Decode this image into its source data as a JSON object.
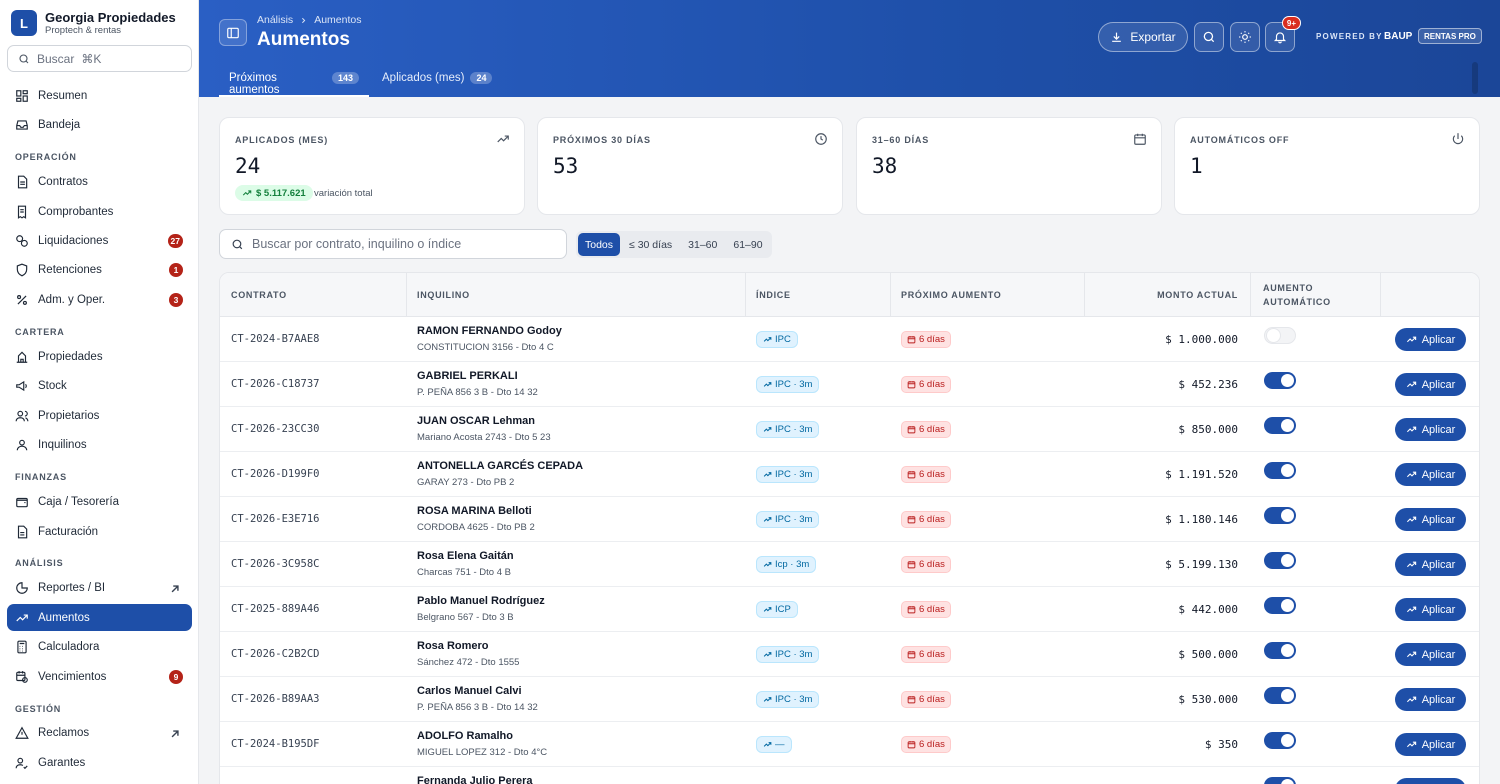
{
  "brand": {
    "logo_letter": "L",
    "name": "Georgia Propiedades",
    "subtitle": "Proptech & rentas"
  },
  "sidebar": {
    "search_placeholder": "Buscar",
    "search_shortcut": "⌘K",
    "top_items": [
      {
        "label": "Resumen"
      },
      {
        "label": "Bandeja"
      }
    ],
    "sections": [
      {
        "title": "OPERACIÓN",
        "items": [
          {
            "label": "Contratos"
          },
          {
            "label": "Comprobantes"
          },
          {
            "label": "Liquidaciones",
            "badge": "27"
          },
          {
            "label": "Retenciones",
            "badge": "1"
          },
          {
            "label": "Adm. y Oper.",
            "badge": "3"
          }
        ]
      },
      {
        "title": "CARTERA",
        "items": [
          {
            "label": "Propiedades"
          },
          {
            "label": "Stock"
          },
          {
            "label": "Propietarios"
          },
          {
            "label": "Inquilinos"
          }
        ]
      },
      {
        "title": "FINANZAS",
        "items": [
          {
            "label": "Caja / Tesorería"
          },
          {
            "label": "Facturación"
          }
        ]
      },
      {
        "title": "ANÁLISIS",
        "items": [
          {
            "label": "Reportes / BI"
          },
          {
            "label": "Aumentos"
          },
          {
            "label": "Calculadora"
          },
          {
            "label": "Vencimientos",
            "badge": "9"
          }
        ]
      },
      {
        "title": "GESTIÓN",
        "items": [
          {
            "label": "Reclamos"
          },
          {
            "label": "Garantes"
          }
        ]
      }
    ]
  },
  "header": {
    "breadcrumb": [
      "Análisis",
      "Aumentos"
    ],
    "title": "Aumentos",
    "tabs": [
      {
        "label": "Próximos aumentos",
        "count": "143"
      },
      {
        "label": "Aplicados (mes)",
        "count": "24"
      }
    ],
    "export_label": "Exportar",
    "notif_badge": "9+",
    "powered_by": "POWERED BY",
    "powered_brand": "BAUP",
    "product_badge": "RENTAS PRO"
  },
  "stats": [
    {
      "label": "APLICADOS (MES)",
      "value": "24",
      "delta": "$ 5.117.621",
      "delta_note": "variación total",
      "icon": "trending-up-icon"
    },
    {
      "label": "PRÓXIMOS 30 DÍAS",
      "value": "53",
      "icon": "clock-icon"
    },
    {
      "label": "31–60 DÍAS",
      "value": "38",
      "icon": "calendar-icon"
    },
    {
      "label": "AUTOMÁTICOS OFF",
      "value": "1",
      "icon": "power-icon"
    }
  ],
  "filters": {
    "search_placeholder": "Buscar por contrato, inquilino o índice",
    "segments": [
      "Todos",
      "≤ 30 días",
      "31–60",
      "61–90"
    ],
    "active_segment": "Todos"
  },
  "table": {
    "columns": [
      "CONTRATO",
      "INQUILINO",
      "ÍNDICE",
      "PRÓXIMO AUMENTO",
      "MONTO ACTUAL",
      "AUMENTO",
      "AUTOMÁTICO"
    ],
    "apply_label": "Aplicar",
    "rows": [
      {
        "contract": "CT-2024-B7AAE8",
        "tenant": "RAMON FERNANDO Godoy",
        "address": "CONSTITUCION 3156 - Dto 4 C",
        "index": "IPC",
        "next": "6 días",
        "amount": "$ 1.000.000",
        "auto": false
      },
      {
        "contract": "CT-2026-C18737",
        "tenant": "GABRIEL PERKALI",
        "address": "P. PEÑA 856 3 B - Dto 14 32",
        "index": "IPC · 3m",
        "next": "6 días",
        "amount": "$ 452.236",
        "auto": true
      },
      {
        "contract": "CT-2026-23CC30",
        "tenant": "JUAN OSCAR Lehman",
        "address": "Mariano Acosta 2743 - Dto 5 23",
        "index": "IPC · 3m",
        "next": "6 días",
        "amount": "$ 850.000",
        "auto": true
      },
      {
        "contract": "CT-2026-D199F0",
        "tenant": "ANTONELLA GARCÉS CEPADA",
        "address": "GARAY 273 - Dto PB 2",
        "index": "IPC · 3m",
        "next": "6 días",
        "amount": "$ 1.191.520",
        "auto": true
      },
      {
        "contract": "CT-2026-E3E716",
        "tenant": "ROSA MARINA Belloti",
        "address": "CORDOBA 4625 - Dto PB 2",
        "index": "IPC · 3m",
        "next": "6 días",
        "amount": "$ 1.180.146",
        "auto": true
      },
      {
        "contract": "CT-2026-3C958C",
        "tenant": "Rosa Elena Gaitán",
        "address": "Charcas 751 - Dto 4 B",
        "index": "Icp · 3m",
        "next": "6 días",
        "amount": "$ 5.199.130",
        "auto": true
      },
      {
        "contract": "CT-2025-889A46",
        "tenant": "Pablo Manuel Rodríguez",
        "address": "Belgrano 567 - Dto 3 B",
        "index": "ICP",
        "next": "6 días",
        "amount": "$ 442.000",
        "auto": true
      },
      {
        "contract": "CT-2026-C2B2CD",
        "tenant": "Rosa Romero",
        "address": "Sánchez 472 - Dto 1555",
        "index": "IPC · 3m",
        "next": "6 días",
        "amount": "$ 500.000",
        "auto": true
      },
      {
        "contract": "CT-2026-B89AA3",
        "tenant": "Carlos Manuel Calvi",
        "address": "P. PEÑA 856 3 B - Dto 14 32",
        "index": "IPC · 3m",
        "next": "6 días",
        "amount": "$ 530.000",
        "auto": true
      },
      {
        "contract": "CT-2024-B195DF",
        "tenant": "ADOLFO Ramalho",
        "address": "MIGUEL LOPEZ 312 - Dto 4°C",
        "index": "—",
        "next": "6 días",
        "amount": "$ 350",
        "auto": true
      },
      {
        "contract": "",
        "tenant": "Fernanda Julio Perera",
        "address": "",
        "index": "",
        "next": "",
        "amount": "",
        "auto": true
      }
    ]
  },
  "colors": {
    "primary": "#1e4fa8",
    "danger": "#b42318",
    "success": "#15803d"
  }
}
